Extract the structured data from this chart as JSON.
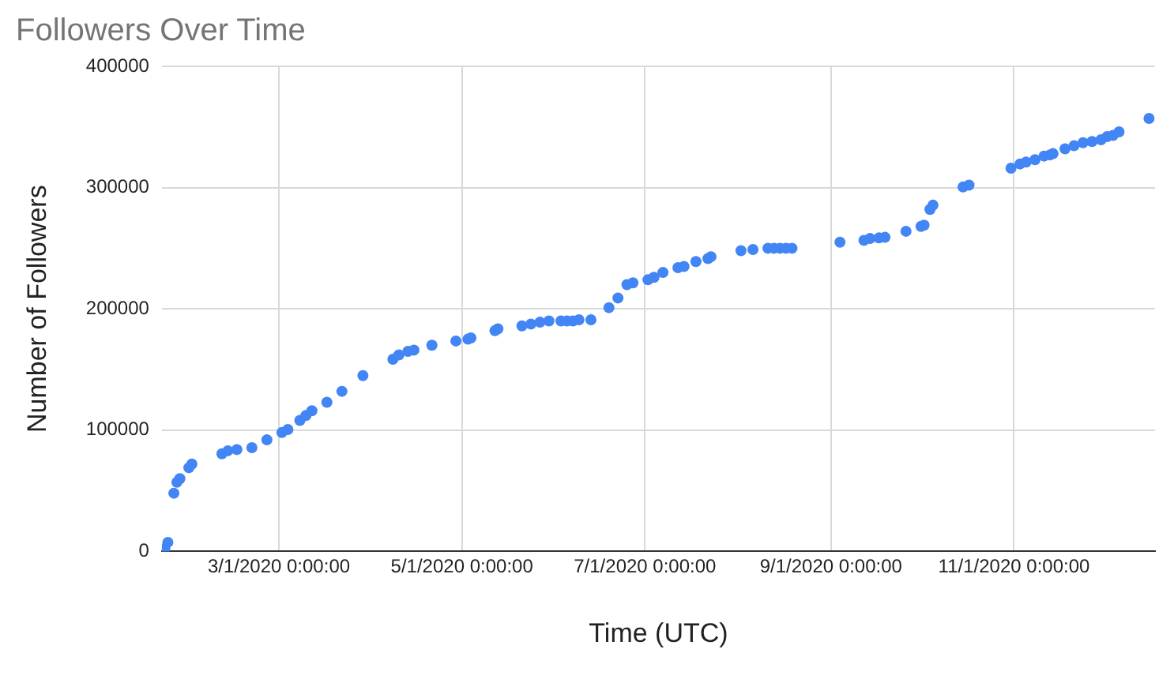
{
  "chart_data": {
    "type": "scatter",
    "title": "Followers Over Time",
    "xlabel": "Time (UTC)",
    "ylabel": "Number of Followers",
    "x": [
      "2020-01-23",
      "2020-01-24",
      "2020-01-26",
      "2020-01-27",
      "2020-01-28",
      "2020-01-31",
      "2020-02-01",
      "2020-02-11",
      "2020-02-13",
      "2020-02-16",
      "2020-02-21",
      "2020-02-26",
      "2020-03-02",
      "2020-03-04",
      "2020-03-08",
      "2020-03-10",
      "2020-03-12",
      "2020-03-17",
      "2020-03-22",
      "2020-03-29",
      "2020-04-08",
      "2020-04-10",
      "2020-04-13",
      "2020-04-15",
      "2020-04-21",
      "2020-04-29",
      "2020-05-03",
      "2020-05-04",
      "2020-05-12",
      "2020-05-13",
      "2020-05-21",
      "2020-05-24",
      "2020-05-27",
      "2020-05-30",
      "2020-06-03",
      "2020-06-05",
      "2020-06-07",
      "2020-06-09",
      "2020-06-13",
      "2020-06-19",
      "2020-06-22",
      "2020-06-25",
      "2020-06-27",
      "2020-07-02",
      "2020-07-04",
      "2020-07-07",
      "2020-07-12",
      "2020-07-14",
      "2020-07-18",
      "2020-07-22",
      "2020-07-23",
      "2020-08-02",
      "2020-08-06",
      "2020-08-11",
      "2020-08-13",
      "2020-08-15",
      "2020-08-17",
      "2020-08-19",
      "2020-09-04",
      "2020-09-12",
      "2020-09-14",
      "2020-09-17",
      "2020-09-19",
      "2020-09-26",
      "2020-10-01",
      "2020-10-02",
      "2020-10-04",
      "2020-10-05",
      "2020-10-15",
      "2020-10-17",
      "2020-10-31",
      "2020-11-03",
      "2020-11-05",
      "2020-11-08",
      "2020-11-11",
      "2020-11-13",
      "2020-11-14",
      "2020-11-18",
      "2020-11-21",
      "2020-11-24",
      "2020-11-27",
      "2020-11-30",
      "2020-12-02",
      "2020-12-04",
      "2020-12-06",
      "2020-12-16"
    ],
    "series": [
      {
        "color": "#4285f4",
        "values": [
          2500,
          7500,
          48000,
          57000,
          60000,
          69000,
          72000,
          80500,
          83000,
          84000,
          85500,
          92000,
          98000,
          100500,
          108000,
          112000,
          116000,
          123000,
          132000,
          145000,
          158500,
          162000,
          165000,
          166000,
          170000,
          173500,
          175000,
          176000,
          182000,
          183500,
          186000,
          187500,
          189000,
          190000,
          190000,
          190000,
          190000,
          191000,
          191000,
          201000,
          209000,
          220000,
          221500,
          224000,
          226000,
          230000,
          234000,
          235000,
          239000,
          241500,
          243000,
          248000,
          249000,
          250000,
          250000,
          250000,
          250000,
          250000,
          255000,
          256500,
          258000,
          258500,
          259000,
          264000,
          268000,
          269000,
          282000,
          285500,
          300500,
          302000,
          316000,
          319500,
          321000,
          323000,
          326000,
          327000,
          328000,
          332000,
          334500,
          337000,
          338000,
          339500,
          342000,
          343000,
          346000,
          357000
        ]
      }
    ],
    "xlim": [
      "2020-01-22",
      "2020-12-18"
    ],
    "xticks": [
      {
        "value": "2020-03-01",
        "label": "3/1/2020 0:00:00"
      },
      {
        "value": "2020-05-01",
        "label": "5/1/2020 0:00:00"
      },
      {
        "value": "2020-07-01",
        "label": "7/1/2020 0:00:00"
      },
      {
        "value": "2020-09-01",
        "label": "9/1/2020 0:00:00"
      },
      {
        "value": "2020-11-01",
        "label": "11/1/2020 0:00:00"
      }
    ],
    "ylim": [
      0,
      400000
    ],
    "yticks": [
      0,
      100000,
      200000,
      300000,
      400000
    ],
    "grid": true,
    "legend": false,
    "marker": "circle"
  }
}
